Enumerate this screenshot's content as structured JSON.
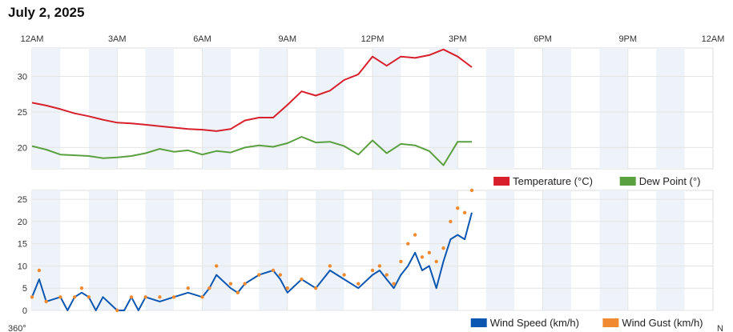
{
  "page": {
    "title": "July 2, 2025"
  },
  "colors": {
    "temperature": "#d7202c",
    "dew_point": "#5aa040",
    "wind_speed": "#0a56b0",
    "wind_gust": "#f08a30",
    "band": "#eef3fa",
    "grid": "#e4e4e4"
  },
  "chart_data": [
    {
      "type": "line",
      "title": "",
      "x_unit": "hour of day",
      "xlim": [
        0,
        24
      ],
      "x_tick_values": [
        0,
        3,
        6,
        9,
        12,
        15,
        18,
        21,
        24
      ],
      "x_tick_labels": [
        "12AM",
        "3AM",
        "6AM",
        "9AM",
        "12PM",
        "3PM",
        "6PM",
        "9PM",
        "12AM"
      ],
      "ylim": [
        17,
        34
      ],
      "y_ticks": [
        20,
        25,
        30
      ],
      "legend_position": "bottom-right",
      "series": [
        {
          "name": "Temperature (°C)",
          "color": "#d7202c",
          "points": [
            [
              0,
              26.3
            ],
            [
              0.5,
              25.9
            ],
            [
              1,
              25.4
            ],
            [
              1.5,
              24.8
            ],
            [
              2,
              24.4
            ],
            [
              2.5,
              23.9
            ],
            [
              3,
              23.5
            ],
            [
              3.5,
              23.4
            ],
            [
              4,
              23.2
            ],
            [
              4.5,
              23.0
            ],
            [
              5,
              22.8
            ],
            [
              5.5,
              22.6
            ],
            [
              6,
              22.5
            ],
            [
              6.5,
              22.3
            ],
            [
              7,
              22.6
            ],
            [
              7.5,
              23.8
            ],
            [
              8,
              24.2
            ],
            [
              8.5,
              24.2
            ],
            [
              9,
              26.0
            ],
            [
              9.5,
              27.9
            ],
            [
              10,
              27.3
            ],
            [
              10.5,
              28.0
            ],
            [
              11,
              29.5
            ],
            [
              11.5,
              30.3
            ],
            [
              12,
              32.8
            ],
            [
              12.5,
              31.5
            ],
            [
              13,
              32.8
            ],
            [
              13.5,
              32.6
            ],
            [
              14,
              33.0
            ],
            [
              14.5,
              33.8
            ],
            [
              15,
              32.8
            ],
            [
              15.5,
              31.3
            ]
          ]
        },
        {
          "name": "Dew Point (°)",
          "color": "#5aa040",
          "points": [
            [
              0,
              20.2
            ],
            [
              0.5,
              19.7
            ],
            [
              1,
              19.0
            ],
            [
              1.5,
              18.9
            ],
            [
              2,
              18.8
            ],
            [
              2.5,
              18.5
            ],
            [
              3,
              18.6
            ],
            [
              3.5,
              18.8
            ],
            [
              4,
              19.2
            ],
            [
              4.5,
              19.8
            ],
            [
              5,
              19.4
            ],
            [
              5.5,
              19.6
            ],
            [
              6,
              19.0
            ],
            [
              6.5,
              19.5
            ],
            [
              7,
              19.3
            ],
            [
              7.5,
              20.0
            ],
            [
              8,
              20.3
            ],
            [
              8.5,
              20.1
            ],
            [
              9,
              20.6
            ],
            [
              9.5,
              21.5
            ],
            [
              10,
              20.7
            ],
            [
              10.5,
              20.8
            ],
            [
              11,
              20.2
            ],
            [
              11.5,
              19.0
            ],
            [
              12,
              21.0
            ],
            [
              12.5,
              19.2
            ],
            [
              13,
              20.5
            ],
            [
              13.5,
              20.3
            ],
            [
              14,
              19.5
            ],
            [
              14.5,
              17.5
            ],
            [
              15,
              20.8
            ],
            [
              15.5,
              20.8
            ]
          ]
        }
      ]
    },
    {
      "type": "line",
      "title": "",
      "x_unit": "hour of day",
      "xlim": [
        0,
        24
      ],
      "ylim": [
        0,
        27
      ],
      "y_ticks": [
        0,
        5,
        10,
        15,
        20,
        25
      ],
      "legend_position": "bottom-right",
      "series": [
        {
          "name": "Wind Speed (km/h)",
          "color": "#0a56b0",
          "points": [
            [
              0,
              3
            ],
            [
              0.25,
              7
            ],
            [
              0.5,
              2
            ],
            [
              1,
              3
            ],
            [
              1.25,
              0
            ],
            [
              1.5,
              3
            ],
            [
              1.75,
              4
            ],
            [
              2,
              3
            ],
            [
              2.25,
              0
            ],
            [
              2.5,
              3
            ],
            [
              3,
              0
            ],
            [
              3.25,
              0
            ],
            [
              3.5,
              3
            ],
            [
              3.75,
              0
            ],
            [
              4,
              3
            ],
            [
              4.5,
              2
            ],
            [
              5,
              3
            ],
            [
              5.5,
              4
            ],
            [
              6,
              3
            ],
            [
              6.25,
              5
            ],
            [
              6.5,
              8
            ],
            [
              7,
              5
            ],
            [
              7.25,
              4
            ],
            [
              7.5,
              6
            ],
            [
              8,
              8
            ],
            [
              8.5,
              9
            ],
            [
              8.75,
              7
            ],
            [
              9,
              4
            ],
            [
              9.5,
              7
            ],
            [
              10,
              5
            ],
            [
              10.5,
              9
            ],
            [
              11,
              7
            ],
            [
              11.5,
              5
            ],
            [
              12,
              8
            ],
            [
              12.25,
              9
            ],
            [
              12.5,
              7
            ],
            [
              12.75,
              5
            ],
            [
              13,
              8
            ],
            [
              13.25,
              10
            ],
            [
              13.5,
              13
            ],
            [
              13.75,
              9
            ],
            [
              14,
              10
            ],
            [
              14.25,
              5
            ],
            [
              14.5,
              11
            ],
            [
              14.75,
              16
            ],
            [
              15,
              17
            ],
            [
              15.25,
              16
            ],
            [
              15.5,
              22
            ]
          ]
        },
        {
          "name": "Wind Gust (km/h)",
          "color": "#f08a30",
          "points": [
            [
              0,
              3
            ],
            [
              0.25,
              9
            ],
            [
              0.5,
              2
            ],
            [
              1,
              3
            ],
            [
              1.5,
              3
            ],
            [
              1.75,
              5
            ],
            [
              2,
              3
            ],
            [
              3,
              0
            ],
            [
              3.5,
              3
            ],
            [
              4,
              3
            ],
            [
              4.5,
              3
            ],
            [
              5,
              3
            ],
            [
              5.5,
              5
            ],
            [
              6,
              3
            ],
            [
              6.25,
              5
            ],
            [
              6.5,
              10
            ],
            [
              7,
              6
            ],
            [
              7.25,
              4
            ],
            [
              7.5,
              6
            ],
            [
              8,
              8
            ],
            [
              8.5,
              9
            ],
            [
              8.75,
              8
            ],
            [
              9,
              5
            ],
            [
              9.5,
              7
            ],
            [
              10,
              5
            ],
            [
              10.5,
              10
            ],
            [
              11,
              8
            ],
            [
              11.5,
              6
            ],
            [
              12,
              9
            ],
            [
              12.25,
              10
            ],
            [
              12.5,
              8
            ],
            [
              12.75,
              6
            ],
            [
              13,
              11
            ],
            [
              13.25,
              15
            ],
            [
              13.5,
              17
            ],
            [
              13.75,
              12
            ],
            [
              14,
              13
            ],
            [
              14.25,
              11
            ],
            [
              14.5,
              14
            ],
            [
              14.75,
              20
            ],
            [
              15,
              23
            ],
            [
              15.25,
              22
            ],
            [
              15.5,
              27
            ]
          ]
        }
      ]
    }
  ],
  "axis_labels": {
    "wind_direction_left": "360°",
    "wind_direction_right": "N"
  }
}
